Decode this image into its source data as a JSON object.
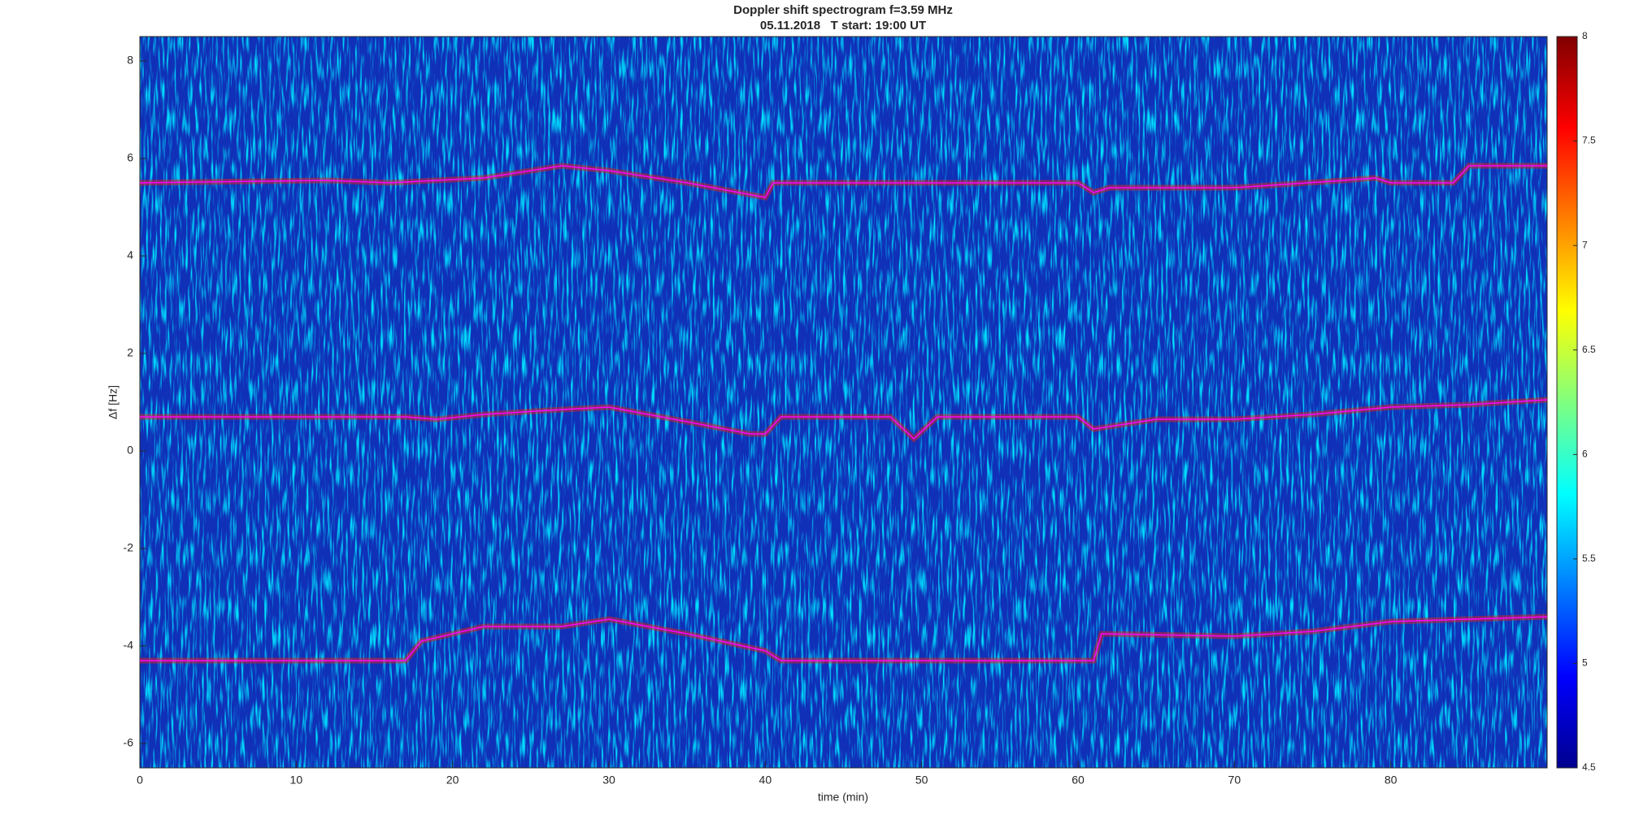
{
  "chart_data": {
    "type": "spectrogram",
    "title": "Doppler shift spectrogram f=3.59 MHz",
    "subtitle": "05.11.2018   T start: 19:00 UT",
    "x_label": "time (min)",
    "y_label": "Δf [Hz]",
    "xlim": [
      0,
      90
    ],
    "ylim": [
      -6.5,
      8.5
    ],
    "xticks": [
      0,
      10,
      20,
      30,
      40,
      50,
      60,
      70,
      80
    ],
    "yticks": [
      -6,
      -4,
      -2,
      0,
      2,
      4,
      6,
      8
    ],
    "colorbar": {
      "lim": [
        4.5,
        8
      ],
      "ticks": [
        4.5,
        5,
        5.5,
        6,
        6.5,
        7,
        7.5,
        8
      ]
    },
    "series": [
      {
        "color": "#ff00ff",
        "x": [
          0,
          12,
          16,
          22,
          27,
          30,
          35,
          40,
          40.5,
          60,
          61,
          62,
          70,
          77,
          79,
          80,
          84,
          85,
          90
        ],
        "values": [
          5.5,
          5.55,
          5.5,
          5.6,
          5.85,
          5.75,
          5.5,
          5.2,
          5.5,
          5.5,
          5.3,
          5.4,
          5.4,
          5.55,
          5.6,
          5.5,
          5.5,
          5.85,
          5.85
        ]
      },
      {
        "color": "#ff00ff",
        "x": [
          0,
          17,
          19,
          22,
          27,
          30,
          35,
          39,
          40,
          41,
          48,
          49.5,
          51,
          60,
          61,
          65,
          70,
          75,
          80,
          85,
          90
        ],
        "values": [
          0.7,
          0.7,
          0.65,
          0.75,
          0.85,
          0.9,
          0.6,
          0.35,
          0.35,
          0.7,
          0.7,
          0.25,
          0.7,
          0.7,
          0.45,
          0.65,
          0.65,
          0.75,
          0.9,
          0.95,
          1.05
        ]
      },
      {
        "color": "#ff00ff",
        "x": [
          0,
          17,
          18,
          22,
          27,
          30,
          35,
          40,
          41,
          61,
          61.5,
          70,
          75,
          80,
          90
        ],
        "values": [
          -4.3,
          -4.3,
          -3.9,
          -3.6,
          -3.6,
          -3.45,
          -3.75,
          -4.1,
          -4.3,
          -4.3,
          -3.75,
          -3.8,
          -3.7,
          -3.5,
          -3.4
        ]
      }
    ]
  }
}
